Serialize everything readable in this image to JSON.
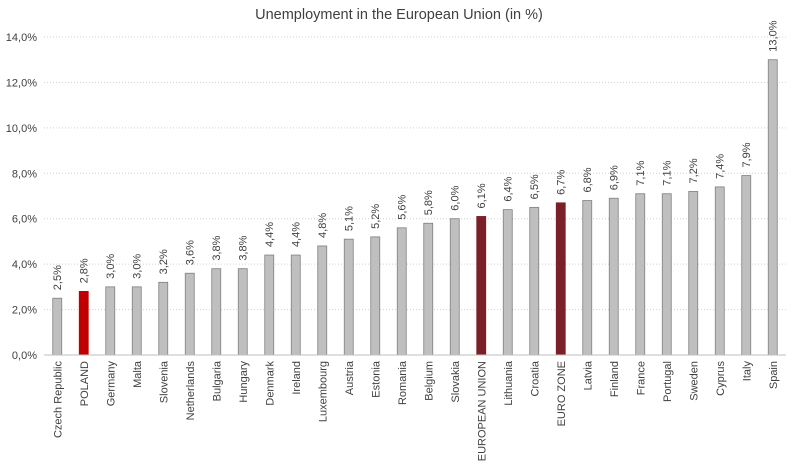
{
  "chart_data": {
    "type": "bar",
    "title": "Unemployment in the European Union (in %)",
    "xlabel": "",
    "ylabel": "",
    "ylim": [
      0,
      14
    ],
    "yticks": [
      0,
      2,
      4,
      6,
      8,
      10,
      12,
      14
    ],
    "ytick_labels": [
      "0,0%",
      "2,0%",
      "4,0%",
      "6,0%",
      "8,0%",
      "10,0%",
      "12,0%",
      "14,0%"
    ],
    "grid": true,
    "legend": "none",
    "categories": [
      "Czech Republic",
      "POLAND",
      "Germany",
      "Malta",
      "Slovenia",
      "Netherlands",
      "Bulgaria",
      "Hungary",
      "Denmark",
      "Ireland",
      "Luxembourg",
      "Austria",
      "Estonia",
      "Romania",
      "Belgium",
      "Slovakia",
      "EUROPEAN UNION",
      "Lithuania",
      "Croatia",
      "EURO ZONE",
      "Latvia",
      "Finland",
      "France",
      "Portugal",
      "Sweden",
      "Cyprus",
      "Italy",
      "Spain"
    ],
    "values": [
      2.5,
      2.8,
      3.0,
      3.0,
      3.2,
      3.6,
      3.8,
      3.8,
      4.4,
      4.4,
      4.8,
      5.1,
      5.2,
      5.6,
      5.8,
      6.0,
      6.1,
      6.4,
      6.5,
      6.7,
      6.8,
      6.9,
      7.1,
      7.1,
      7.2,
      7.4,
      7.9,
      13.0
    ],
    "data_labels": [
      "2,5%",
      "2,8%",
      "3,0%",
      "3,0%",
      "3,2%",
      "3,6%",
      "3,8%",
      "3,8%",
      "4,4%",
      "4,4%",
      "4,8%",
      "5,1%",
      "5,2%",
      "5,6%",
      "5,8%",
      "6,0%",
      "6,1%",
      "6,4%",
      "6,5%",
      "6,7%",
      "6,8%",
      "6,9%",
      "7,1%",
      "7,1%",
      "7,2%",
      "7,4%",
      "7,9%",
      "13,0%"
    ],
    "colors": {
      "default": "#bfbfbf",
      "default_stroke": "#7f7f7f",
      "POLAND": "#c00000",
      "EUROPEAN UNION": "#7b2028",
      "EURO ZONE": "#7b2028"
    }
  }
}
